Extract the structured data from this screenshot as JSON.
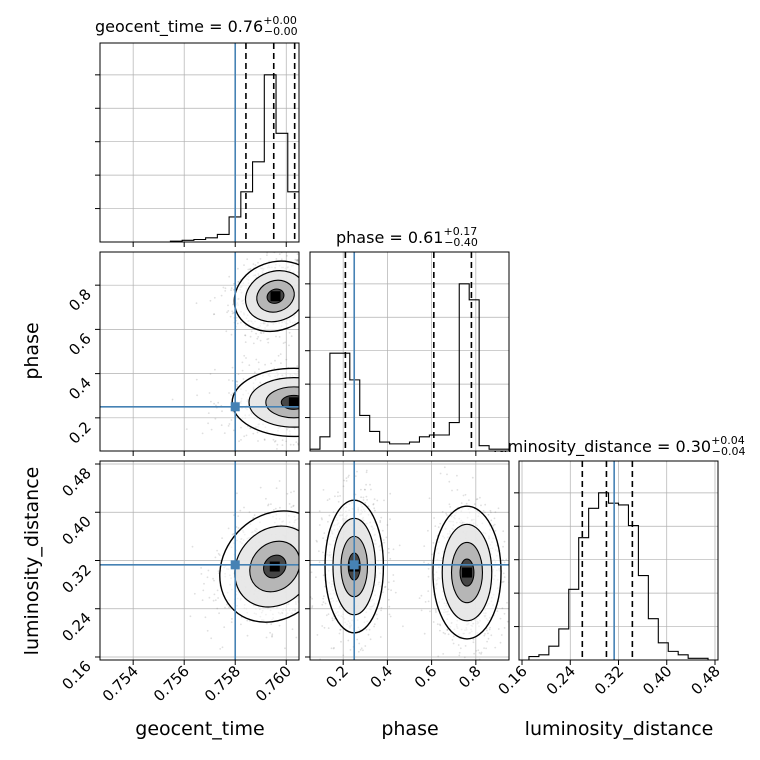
{
  "chart_data": {
    "type": "corner",
    "parameters": [
      "geocent_time",
      "phase",
      "luminosity_distance"
    ],
    "axis_labels": [
      "geocent_time",
      "phase",
      "luminosity_distance"
    ],
    "titles": [
      {
        "param": "geocent_time",
        "prefix": "geocent_time = ",
        "median": "0.76",
        "plus": "+0.00",
        "minus": "−0.00"
      },
      {
        "param": "phase",
        "prefix": "phase = ",
        "median": "0.61",
        "plus": "+0.17",
        "minus": "−0.40"
      },
      {
        "param": "luminosity_distance",
        "prefix": "luminosity_distance = ",
        "median": "0.30",
        "plus": "+0.04",
        "minus": "−0.04"
      }
    ],
    "ranges": {
      "geocent_time": [
        0.7527,
        0.7605
      ],
      "phase": [
        0.05,
        0.95
      ],
      "luminosity_distance": [
        0.155,
        0.485
      ]
    },
    "ticks": {
      "geocent_time": {
        "values": [
          0.754,
          0.756,
          0.758,
          0.76
        ],
        "labels": [
          "0.754",
          "0.756",
          "0.758",
          "0.760"
        ]
      },
      "phase": {
        "values": [
          0.2,
          0.4,
          0.6,
          0.8
        ],
        "labels": [
          "0.2",
          "0.4",
          "0.6",
          "0.8"
        ]
      },
      "luminosity_distance": {
        "values": [
          0.16,
          0.24,
          0.32,
          0.4,
          0.48
        ],
        "labels": [
          "0.16",
          "0.24",
          "0.32",
          "0.40",
          "0.48"
        ]
      }
    },
    "truths": {
      "geocent_time": 0.758,
      "phase": 0.25,
      "luminosity_distance": 0.3128
    },
    "quantiles": {
      "geocent_time": [
        0.75842,
        0.75951,
        0.76033
      ],
      "phase": [
        0.21,
        0.61,
        0.78
      ],
      "luminosity_distance": [
        0.26,
        0.3,
        0.343
      ]
    },
    "histograms": {
      "geocent_time": {
        "edges": [
          0.7527,
          0.75316,
          0.75362,
          0.75408,
          0.75454,
          0.755,
          0.75546,
          0.75592,
          0.75638,
          0.75684,
          0.7573,
          0.75776,
          0.75822,
          0.75868,
          0.75914,
          0.7596,
          0.76006,
          0.76052
        ],
        "counts": [
          0,
          0,
          0,
          0,
          0,
          0,
          0.5,
          1,
          1.5,
          2.5,
          4.5,
          15,
          30,
          48,
          100,
          65,
          30
        ]
      },
      "phase": {
        "edges": [
          0.05,
          0.095,
          0.14,
          0.185,
          0.23,
          0.275,
          0.32,
          0.365,
          0.41,
          0.455,
          0.5,
          0.545,
          0.59,
          0.635,
          0.68,
          0.725,
          0.77,
          0.815,
          0.86,
          0.905,
          0.95
        ],
        "counts": [
          1,
          8,
          55,
          55,
          40,
          20,
          11,
          5,
          4,
          4,
          5,
          8,
          9,
          9,
          16,
          94,
          85,
          3,
          1,
          1
        ]
      },
      "luminosity_distance": {
        "edges": [
          0.155,
          0.1715,
          0.188,
          0.2045,
          0.221,
          0.2375,
          0.254,
          0.2705,
          0.287,
          0.3035,
          0.32,
          0.3365,
          0.353,
          0.3695,
          0.386,
          0.4025,
          0.419,
          0.4355,
          0.452,
          0.4685,
          0.485
        ],
        "counts": [
          0,
          2,
          3,
          8,
          18,
          41,
          71,
          88,
          97,
          91,
          90,
          78,
          49,
          24,
          10,
          5,
          3,
          1,
          1,
          0
        ]
      }
    },
    "hist_tick_fractions": [
      0.2,
      0.4,
      0.6,
      0.8,
      1.0
    ],
    "contours_2d": [
      {
        "x": "geocent_time",
        "y": "phase",
        "clusters": [
          {
            "cx": 0.75958,
            "cy": 0.75,
            "sx": 0.00075,
            "sy": 0.07,
            "rot": 0.35
          },
          {
            "cx": 0.7603,
            "cy": 0.27,
            "sx": 0.0011,
            "sy": 0.07,
            "rot": 0.0
          }
        ]
      },
      {
        "x": "geocent_time",
        "y": "luminosity_distance",
        "clusters": [
          {
            "cx": 0.75955,
            "cy": 0.31,
            "sx": 0.0009,
            "sy": 0.045,
            "rot": -0.75
          }
        ]
      },
      {
        "x": "phase",
        "y": "luminosity_distance",
        "clusters": [
          {
            "cx": 0.25,
            "cy": 0.31,
            "sx": 0.06,
            "sy": 0.05,
            "rot": 0.0
          },
          {
            "cx": 0.76,
            "cy": 0.3,
            "sx": 0.07,
            "sy": 0.05,
            "rot": 0.0
          }
        ]
      }
    ],
    "colors": {
      "truth": "#4682b4",
      "line": "#000000",
      "grid": "#b0b0b0",
      "points": "#808080"
    }
  }
}
